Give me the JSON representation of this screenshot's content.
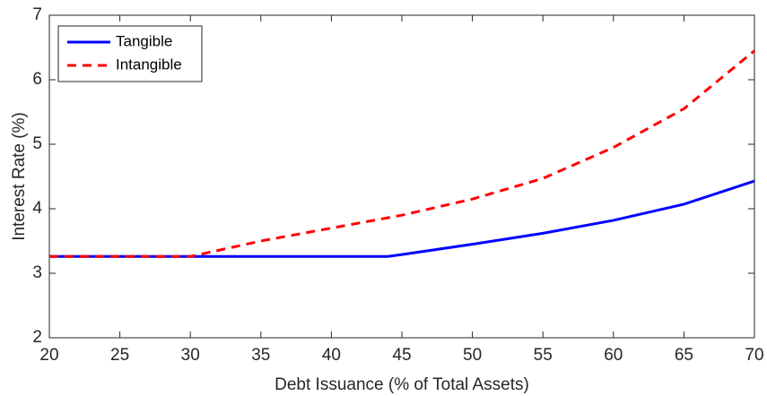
{
  "chart_data": {
    "type": "line",
    "x_label": "Debt Issuance (% of Total Assets)",
    "y_label": "Interest Rate (%)",
    "xlim": [
      20,
      70
    ],
    "xticks": [
      20,
      25,
      30,
      35,
      40,
      45,
      50,
      55,
      60,
      65,
      70
    ],
    "ylim": [
      2,
      7
    ],
    "yticks": [
      2,
      3,
      4,
      5,
      6,
      7
    ],
    "legend": "upper-left",
    "series": [
      {
        "name": "Tangible",
        "color": "#0000ff",
        "dash": "solid",
        "x": [
          20,
          44,
          45,
          50,
          55,
          60,
          65,
          70
        ],
        "values": [
          3.26,
          3.26,
          3.29,
          3.45,
          3.62,
          3.82,
          4.07,
          4.43
        ]
      },
      {
        "name": "Intangible",
        "color": "#ff0000",
        "dash": "dashed",
        "x": [
          20,
          30,
          35,
          40,
          45,
          50,
          55,
          60,
          65,
          70
        ],
        "values": [
          3.26,
          3.26,
          3.5,
          3.7,
          3.9,
          4.15,
          4.47,
          4.95,
          5.55,
          6.45
        ]
      }
    ]
  }
}
